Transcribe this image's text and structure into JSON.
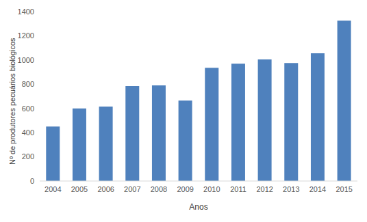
{
  "chart_data": {
    "type": "bar",
    "x_label": "Anos",
    "y_label": "Nº de produtores pecuários biológicos",
    "categories": [
      "2004",
      "2005",
      "2006",
      "2007",
      "2008",
      "2009",
      "2010",
      "2011",
      "2012",
      "2013",
      "2014",
      "2015"
    ],
    "values": [
      450,
      600,
      615,
      785,
      790,
      665,
      935,
      970,
      1005,
      975,
      1055,
      1325
    ],
    "color": "#4f81bd",
    "ylim": [
      0,
      1400
    ],
    "yticks": [
      0,
      200,
      400,
      600,
      800,
      1000,
      1200,
      1400
    ],
    "grid": false
  }
}
